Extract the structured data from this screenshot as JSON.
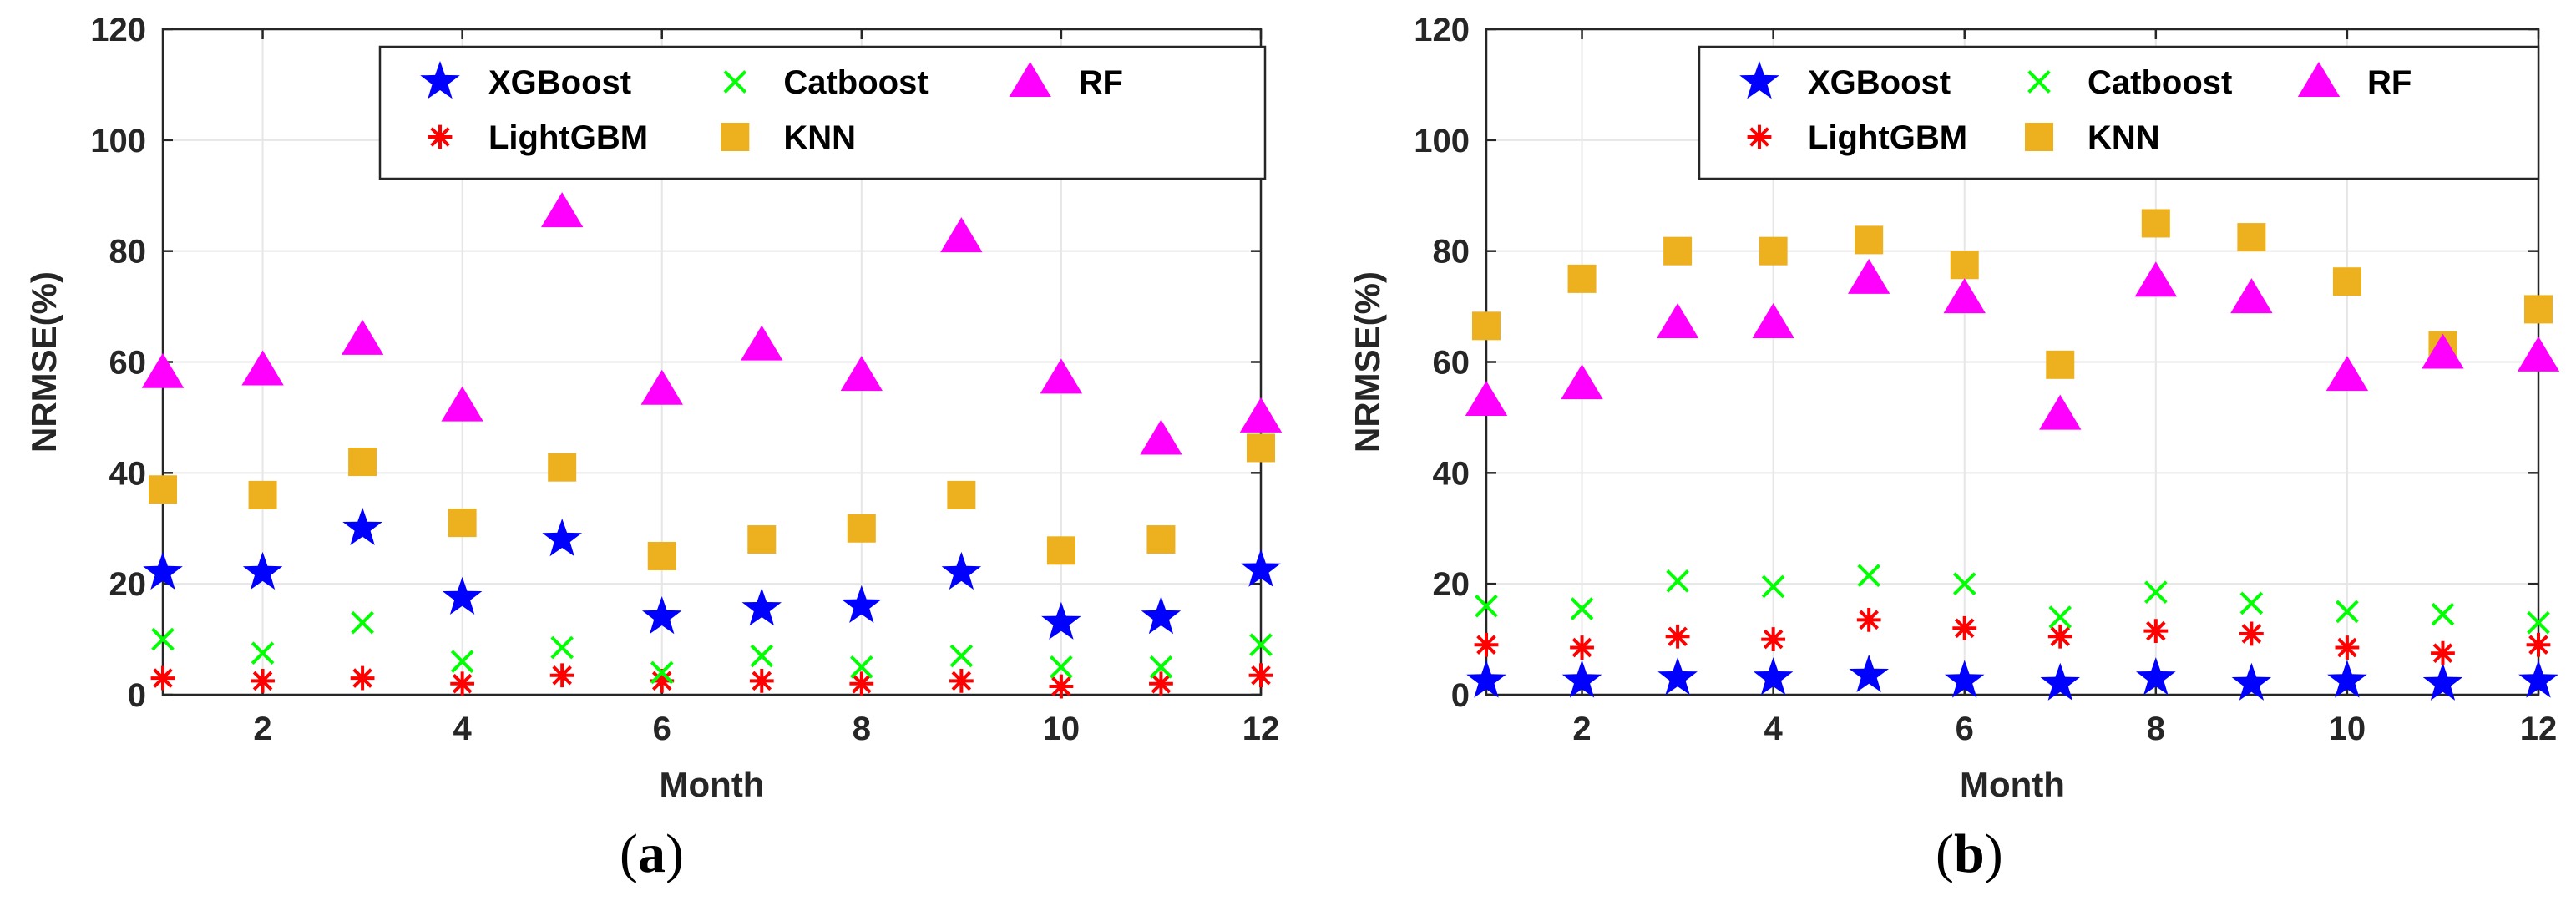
{
  "chart_data": [
    {
      "type": "scatter",
      "panel_label": "a",
      "title": "",
      "xlabel": "Month",
      "ylabel": "NRMSE(%)",
      "xlim": [
        1,
        12
      ],
      "ylim": [
        0,
        120
      ],
      "xticks": [
        2,
        4,
        6,
        8,
        10,
        12
      ],
      "yticks": [
        0,
        20,
        40,
        60,
        80,
        100,
        120
      ],
      "grid": true,
      "legend_position": "top-right",
      "x": [
        1,
        2,
        3,
        4,
        5,
        6,
        7,
        8,
        9,
        10,
        11,
        12
      ],
      "series": [
        {
          "name": "XGBoost",
          "color": "#0000ff",
          "marker": "star",
          "values": [
            22,
            22,
            30,
            17.5,
            28,
            14,
            15.5,
            16,
            22,
            13,
            14,
            22.5
          ]
        },
        {
          "name": "LightGBM",
          "color": "#ff0000",
          "marker": "asterisk",
          "values": [
            3,
            2.5,
            3,
            2,
            3.5,
            2.5,
            2.5,
            2,
            2.5,
            1.5,
            2,
            3.5
          ]
        },
        {
          "name": "Catboost",
          "color": "#00ff00",
          "marker": "x",
          "values": [
            10,
            7.5,
            13,
            6,
            8.5,
            4,
            7,
            5,
            7,
            5,
            5,
            9
          ]
        },
        {
          "name": "KNN",
          "color": "#edb120",
          "marker": "square",
          "values": [
            37,
            36,
            42,
            31,
            41,
            25,
            28,
            30,
            36,
            26,
            28,
            44.5
          ]
        },
        {
          "name": "RF",
          "color": "#ff00ff",
          "marker": "triangle",
          "values": [
            58,
            58.5,
            64,
            52,
            87,
            55,
            63,
            57.5,
            82.5,
            57,
            46,
            50
          ]
        }
      ]
    },
    {
      "type": "scatter",
      "panel_label": "b",
      "title": "",
      "xlabel": "Month",
      "ylabel": "NRMSE(%)",
      "xlim": [
        1,
        12
      ],
      "ylim": [
        0,
        120
      ],
      "xticks": [
        2,
        4,
        6,
        8,
        10,
        12
      ],
      "yticks": [
        0,
        20,
        40,
        60,
        80,
        100,
        120
      ],
      "grid": true,
      "legend_position": "top-right",
      "x": [
        1,
        2,
        3,
        4,
        5,
        6,
        7,
        8,
        9,
        10,
        11,
        12
      ],
      "series": [
        {
          "name": "XGBoost",
          "color": "#0000ff",
          "marker": "star",
          "values": [
            2.5,
            2.5,
            3,
            3,
            3.5,
            2.5,
            2,
            3,
            2,
            2.5,
            2,
            2.5
          ]
        },
        {
          "name": "LightGBM",
          "color": "#ff0000",
          "marker": "asterisk",
          "values": [
            9,
            8.5,
            10.5,
            10,
            13.5,
            12,
            10.5,
            11.5,
            11,
            8.5,
            7.5,
            9
          ]
        },
        {
          "name": "Catboost",
          "color": "#00ff00",
          "marker": "x",
          "values": [
            16,
            15.5,
            20.5,
            19.5,
            21.5,
            20,
            14,
            18.5,
            16.5,
            15,
            14.5,
            13
          ]
        },
        {
          "name": "KNN",
          "color": "#edb120",
          "marker": "square",
          "values": [
            66.5,
            75,
            80,
            80,
            82,
            77.5,
            59.5,
            85,
            82.5,
            74.5,
            63,
            69.5
          ]
        },
        {
          "name": "RF",
          "color": "#ff00ff",
          "marker": "triangle",
          "values": [
            53,
            56,
            67,
            67,
            75,
            71.5,
            50.5,
            74.5,
            71.5,
            57.5,
            61.5,
            61
          ]
        }
      ]
    }
  ]
}
